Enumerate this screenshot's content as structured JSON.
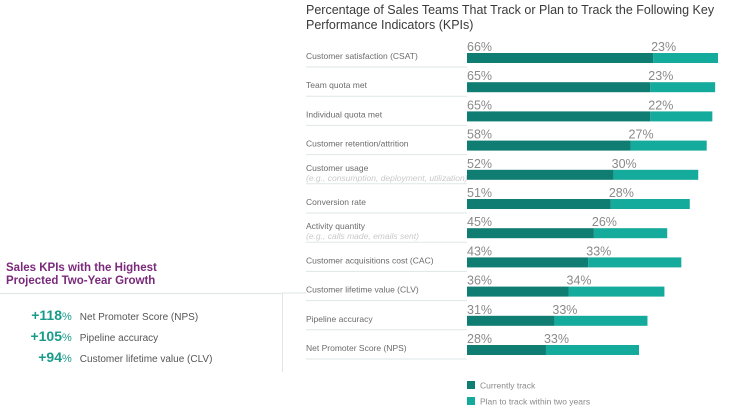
{
  "chart_data": {
    "type": "bar",
    "stacked": true,
    "orientation": "horizontal",
    "title": "Percentage of Sales Teams That Track or Plan to Track the Following Key Performance Indicators (KPIs)",
    "categories": [
      {
        "label": "Customer satisfaction (CSAT)",
        "sub": ""
      },
      {
        "label": "Team quota met",
        "sub": ""
      },
      {
        "label": "Individual quota met",
        "sub": ""
      },
      {
        "label": "Customer retention/attrition",
        "sub": ""
      },
      {
        "label": "Customer usage",
        "sub": "(e.g., consumption, deployment, utilization)"
      },
      {
        "label": "Conversion rate",
        "sub": ""
      },
      {
        "label": "Activity quantity",
        "sub": "(e.g., calls made, emails sent)"
      },
      {
        "label": "Customer acquisitions cost (CAC)",
        "sub": ""
      },
      {
        "label": "Customer lifetime value (CLV)",
        "sub": ""
      },
      {
        "label": "Pipeline accuracy",
        "sub": ""
      },
      {
        "label": "Net Promoter Score (NPS)",
        "sub": ""
      }
    ],
    "series": [
      {
        "name": "Currently track",
        "color": "#0f7d72",
        "values": [
          66,
          65,
          65,
          58,
          52,
          51,
          45,
          43,
          36,
          31,
          28
        ]
      },
      {
        "name": "Plan to track within two years",
        "color": "#14aa9c",
        "values": [
          23,
          23,
          22,
          27,
          30,
          28,
          26,
          33,
          34,
          33,
          33
        ]
      }
    ],
    "value_suffix": "%",
    "legend_position": "bottom",
    "grid": false
  },
  "side_panel": {
    "title_line1": "Sales KPIs with the Highest",
    "title_line2": "Projected Two-Year Growth",
    "items": [
      {
        "value": "+118",
        "suffix": "%",
        "label": "Net Promoter Score (NPS)"
      },
      {
        "value": "+105",
        "suffix": "%",
        "label": "Pipeline accuracy"
      },
      {
        "value": "+94",
        "suffix": "%",
        "label": "Customer lifetime value (CLV)"
      }
    ]
  }
}
